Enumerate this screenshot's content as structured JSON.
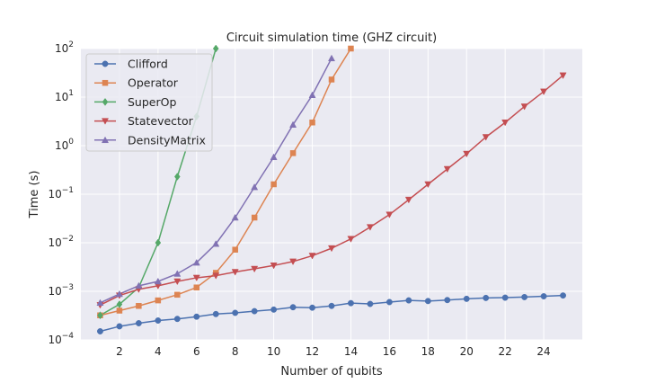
{
  "chart_data": {
    "type": "line",
    "title": "Circuit simulation time (GHZ circuit)",
    "xlabel": "Number of qubits",
    "ylabel": "Time (s)",
    "xlim": [
      0,
      26
    ],
    "ylim": [
      0.0001,
      100
    ],
    "yscale": "log",
    "xticks": [
      2,
      4,
      6,
      8,
      10,
      12,
      14,
      16,
      18,
      20,
      22,
      24
    ],
    "yticks": [
      {
        "value": 0.0001,
        "base": "10",
        "exp": "−4"
      },
      {
        "value": 0.001,
        "base": "10",
        "exp": "−3"
      },
      {
        "value": 0.01,
        "base": "10",
        "exp": "−2"
      },
      {
        "value": 0.1,
        "base": "10",
        "exp": "−1"
      },
      {
        "value": 1,
        "base": "10",
        "exp": "0"
      },
      {
        "value": 10,
        "base": "10",
        "exp": "1"
      },
      {
        "value": 100,
        "base": "10",
        "exp": "2"
      }
    ],
    "grid": true,
    "legend_position": "top-left",
    "series": [
      {
        "name": "Clifford",
        "color": "#4c72b0",
        "marker": "circle",
        "x": [
          1,
          2,
          3,
          4,
          5,
          6,
          7,
          8,
          9,
          10,
          11,
          12,
          13,
          14,
          15,
          16,
          17,
          18,
          19,
          20,
          21,
          22,
          23,
          24,
          25
        ],
        "y": [
          0.00015,
          0.00019,
          0.00022,
          0.00025,
          0.00027,
          0.0003,
          0.00034,
          0.00036,
          0.00039,
          0.00042,
          0.00047,
          0.00046,
          0.0005,
          0.00057,
          0.00055,
          0.0006,
          0.00065,
          0.00063,
          0.00066,
          0.0007,
          0.00073,
          0.00074,
          0.00076,
          0.00079,
          0.00082
        ]
      },
      {
        "name": "Operator",
        "color": "#dd8452",
        "marker": "square",
        "x": [
          1,
          2,
          3,
          4,
          5,
          6,
          7,
          8,
          9,
          10,
          11,
          12,
          13,
          14
        ],
        "y": [
          0.00032,
          0.0004,
          0.0005,
          0.00065,
          0.00085,
          0.0012,
          0.0024,
          0.0072,
          0.033,
          0.16,
          0.7,
          3,
          23,
          100
        ]
      },
      {
        "name": "SuperOp",
        "color": "#55a868",
        "marker": "diamond",
        "x": [
          1,
          2,
          3,
          4,
          5,
          6,
          7
        ],
        "y": [
          0.00032,
          0.00054,
          0.0012,
          0.01,
          0.23,
          4,
          100
        ]
      },
      {
        "name": "Statevector",
        "color": "#c44e52",
        "marker": "triangle-down",
        "x": [
          1,
          2,
          3,
          4,
          5,
          6,
          7,
          8,
          9,
          10,
          11,
          12,
          13,
          14,
          15,
          16,
          17,
          18,
          19,
          20,
          21,
          22,
          23,
          24,
          25
        ],
        "y": [
          0.00052,
          0.00082,
          0.0011,
          0.0013,
          0.0016,
          0.0019,
          0.0021,
          0.0025,
          0.0029,
          0.0034,
          0.0041,
          0.0054,
          0.0077,
          0.012,
          0.021,
          0.038,
          0.077,
          0.16,
          0.33,
          0.68,
          1.5,
          3.0,
          6.4,
          13,
          28
        ]
      },
      {
        "name": "DensityMatrix",
        "color": "#8172b3",
        "marker": "triangle-up",
        "x": [
          1,
          2,
          3,
          4,
          5,
          6,
          7,
          8,
          9,
          10,
          11,
          12,
          13
        ],
        "y": [
          0.00058,
          0.00088,
          0.0013,
          0.0016,
          0.0023,
          0.0039,
          0.0095,
          0.033,
          0.14,
          0.58,
          2.7,
          11,
          63
        ]
      }
    ]
  }
}
